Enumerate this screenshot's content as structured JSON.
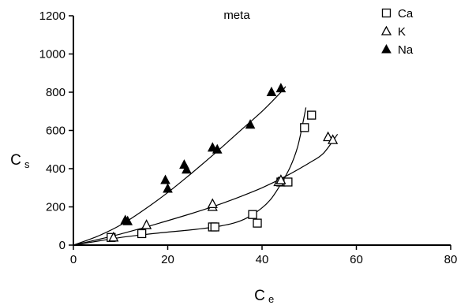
{
  "chart_data": {
    "type": "scatter",
    "title": "meta",
    "xlabel": {
      "main": "C",
      "sub": "e"
    },
    "ylabel": {
      "main": "C",
      "sub": "s"
    },
    "xlim": [
      0,
      80
    ],
    "ylim": [
      0,
      1200
    ],
    "xticks": [
      0,
      20,
      40,
      60,
      80
    ],
    "yticks": [
      0,
      200,
      400,
      600,
      800,
      1000,
      1200
    ],
    "grid": false,
    "legend_position": "top-right",
    "series": [
      {
        "name": "Ca",
        "marker": "open-square",
        "points": [
          [
            8,
            40
          ],
          [
            14.5,
            60
          ],
          [
            29.5,
            95
          ],
          [
            30,
            95
          ],
          [
            38,
            160
          ],
          [
            39,
            115
          ],
          [
            44,
            330
          ],
          [
            45.5,
            330
          ],
          [
            49,
            615
          ],
          [
            50.5,
            680
          ]
        ],
        "fit": [
          [
            0,
            0
          ],
          [
            5,
            20
          ],
          [
            10,
            40
          ],
          [
            15,
            55
          ],
          [
            20,
            68
          ],
          [
            25,
            80
          ],
          [
            30,
            95
          ],
          [
            34,
            115
          ],
          [
            37,
            145
          ],
          [
            40,
            195
          ],
          [
            42,
            245
          ],
          [
            44,
            320
          ],
          [
            46,
            410
          ],
          [
            47.5,
            510
          ],
          [
            48.5,
            620
          ],
          [
            49.3,
            720
          ]
        ]
      },
      {
        "name": "K",
        "marker": "open-triangle",
        "points": [
          [
            8.5,
            40
          ],
          [
            15.5,
            105
          ],
          [
            29.5,
            200
          ],
          [
            29.5,
            215
          ],
          [
            43.5,
            330
          ],
          [
            44,
            340
          ],
          [
            54,
            565
          ],
          [
            55,
            550
          ]
        ],
        "fit": [
          [
            0,
            0
          ],
          [
            5,
            28
          ],
          [
            10,
            58
          ],
          [
            15,
            92
          ],
          [
            20,
            128
          ],
          [
            25,
            165
          ],
          [
            30,
            205
          ],
          [
            35,
            250
          ],
          [
            40,
            300
          ],
          [
            45,
            360
          ],
          [
            50,
            430
          ],
          [
            53,
            480
          ],
          [
            56,
            580
          ]
        ]
      },
      {
        "name": "Na",
        "marker": "filled-triangle",
        "points": [
          [
            11,
            130
          ],
          [
            11.5,
            125
          ],
          [
            19.5,
            340
          ],
          [
            20,
            295
          ],
          [
            23.5,
            420
          ],
          [
            24,
            395
          ],
          [
            29.5,
            510
          ],
          [
            30.5,
            500
          ],
          [
            37.5,
            630
          ],
          [
            42,
            800
          ],
          [
            44,
            820
          ]
        ],
        "fit": [
          [
            0,
            0
          ],
          [
            5,
            45
          ],
          [
            10,
            105
          ],
          [
            15,
            185
          ],
          [
            20,
            275
          ],
          [
            25,
            375
          ],
          [
            30,
            480
          ],
          [
            35,
            590
          ],
          [
            40,
            700
          ],
          [
            44,
            800
          ],
          [
            45,
            830
          ]
        ]
      }
    ]
  }
}
